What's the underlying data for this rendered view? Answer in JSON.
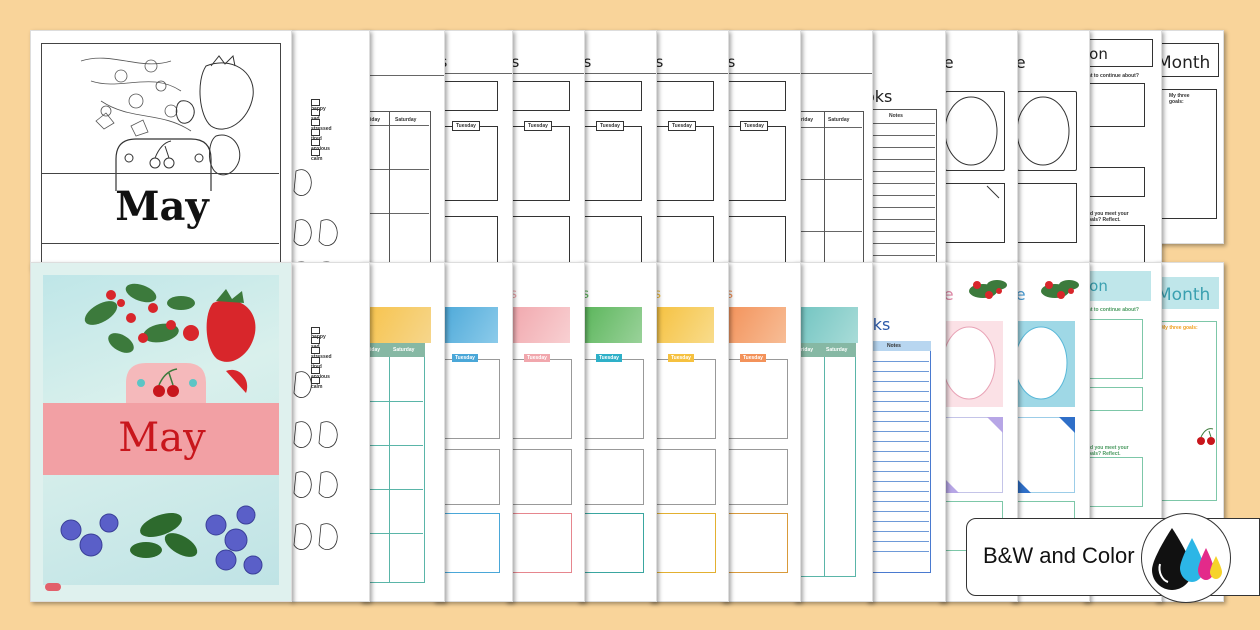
{
  "cover_bw": {
    "month": "May"
  },
  "cover_color": {
    "month": "May"
  },
  "mood_list": [
    "happy",
    "sad",
    "stressed",
    "tired",
    "anxious",
    "calm"
  ],
  "weekday_labels": {
    "friday": "Friday",
    "saturday": "Saturday",
    "tuesday": "Tuesday"
  },
  "page_titles": {
    "plans": "ns",
    "books": "oks",
    "space": "ce",
    "reflection": "ion",
    "month": "Month"
  },
  "notes_label": "Notes",
  "goals_prompts": {
    "continue": "ant to continue about?",
    "continue_bw": "ant to continue about?",
    "three_goals": "My three goals:",
    "three_goals_bw": "My three goals:",
    "meet_goals": "Did you meet your goals? Reflect."
  },
  "badge": {
    "label": "B&W and Color"
  },
  "colors": {
    "background": "#f9d49a",
    "cover_band": "#f2a0a4",
    "plan_colors": [
      "#4aa7d8",
      "#f1a7ad",
      "#5ab55a",
      "#f6c13f",
      "#f3925a"
    ],
    "teal": "#6fc3c0",
    "blue": "#2d5aa8"
  }
}
